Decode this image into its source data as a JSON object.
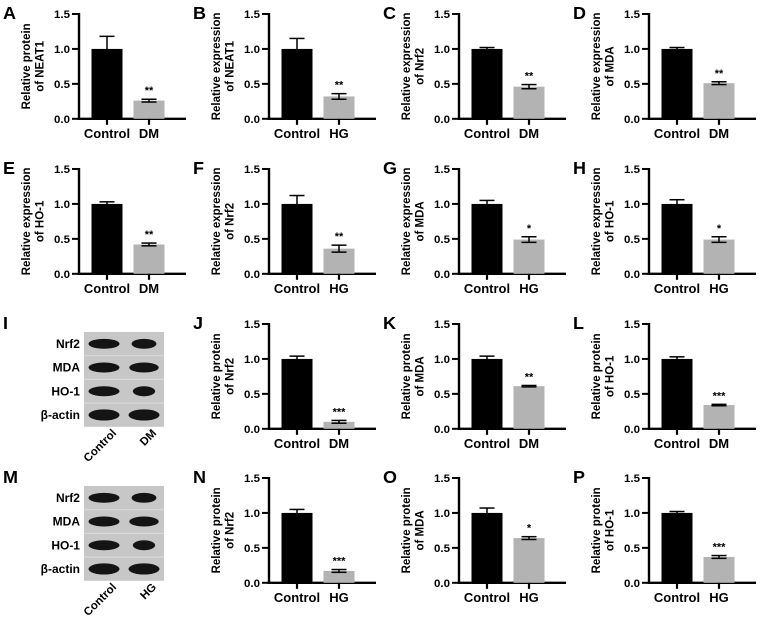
{
  "figure": {
    "description": "Sixteen-panel scientific figure (A–P): bar charts of relative expression/protein levels with western blots, Control vs DM and Control vs HG",
    "colors": {
      "control_bar": "#000000",
      "treated_bar": "#b3b3b3",
      "axis": "#000000",
      "blot_background": "#c7c7c7",
      "blot_separator": "#d9d9d9",
      "blot_band": "#141414"
    }
  },
  "chart_data": [
    {
      "panel": "A",
      "type": "bar",
      "ylabel": "Relative protein of NEAT1",
      "ylabel_lines": [
        "Relative protein",
        "of NEAT1"
      ],
      "categories": [
        "Control",
        "DM"
      ],
      "values": [
        1.0,
        0.26
      ],
      "errors": [
        0.18,
        0.02
      ],
      "significance": "**",
      "ylim": [
        0,
        1.5
      ],
      "yticks": [
        0,
        0.5,
        1,
        1.5
      ]
    },
    {
      "panel": "B",
      "type": "bar",
      "ylabel": "Relative expression of NEAT1",
      "ylabel_lines": [
        "Relative expression",
        "of NEAT1"
      ],
      "categories": [
        "Control",
        "HG"
      ],
      "values": [
        1.0,
        0.32
      ],
      "errors": [
        0.15,
        0.04
      ],
      "significance": "**",
      "ylim": [
        0,
        1.5
      ],
      "yticks": [
        0,
        0.5,
        1,
        1.5
      ]
    },
    {
      "panel": "C",
      "type": "bar",
      "ylabel": "Relative expression of Nrf2",
      "ylabel_lines": [
        "Relative expression",
        "of Nrf2"
      ],
      "categories": [
        "Control",
        "DM"
      ],
      "values": [
        1.0,
        0.46
      ],
      "errors": [
        0.02,
        0.03
      ],
      "significance": "**",
      "ylim": [
        0,
        1.5
      ],
      "yticks": [
        0,
        0.5,
        1,
        1.5
      ]
    },
    {
      "panel": "D",
      "type": "bar",
      "ylabel": "Relative expression of MDA",
      "ylabel_lines": [
        "Relative expression",
        "of MDA"
      ],
      "categories": [
        "Control",
        "DM"
      ],
      "values": [
        1.0,
        0.51
      ],
      "errors": [
        0.02,
        0.02
      ],
      "significance": "**",
      "ylim": [
        0,
        1.5
      ],
      "yticks": [
        0,
        0.5,
        1,
        1.5
      ]
    },
    {
      "panel": "E",
      "type": "bar",
      "ylabel": "Relative expression of HO-1",
      "ylabel_lines": [
        "Relative expression",
        "of HO-1"
      ],
      "categories": [
        "Control",
        "DM"
      ],
      "values": [
        1.0,
        0.42
      ],
      "errors": [
        0.03,
        0.02
      ],
      "significance": "**",
      "ylim": [
        0,
        1.5
      ],
      "yticks": [
        0,
        0.5,
        1,
        1.5
      ]
    },
    {
      "panel": "F",
      "type": "bar",
      "ylabel": "Relative expression of Nrf2",
      "ylabel_lines": [
        "Relative expression",
        "of Nrf2"
      ],
      "categories": [
        "Control",
        "HG"
      ],
      "values": [
        1.0,
        0.36
      ],
      "errors": [
        0.12,
        0.05
      ],
      "significance": "**",
      "ylim": [
        0,
        1.5
      ],
      "yticks": [
        0,
        0.5,
        1,
        1.5
      ]
    },
    {
      "panel": "G",
      "type": "bar",
      "ylabel": "Relative expression of MDA",
      "ylabel_lines": [
        "Relative expression",
        "of MDA"
      ],
      "categories": [
        "Control",
        "HG"
      ],
      "values": [
        1.0,
        0.49
      ],
      "errors": [
        0.05,
        0.04
      ],
      "significance": "*",
      "ylim": [
        0,
        1.5
      ],
      "yticks": [
        0,
        0.5,
        1,
        1.5
      ]
    },
    {
      "panel": "H",
      "type": "bar",
      "ylabel": "Relative expression of HO-1",
      "ylabel_lines": [
        "Relative expression",
        "of HO-1"
      ],
      "categories": [
        "Control",
        "HG"
      ],
      "values": [
        1.0,
        0.49
      ],
      "errors": [
        0.06,
        0.04
      ],
      "significance": "*",
      "ylim": [
        0,
        1.5
      ],
      "yticks": [
        0,
        0.5,
        1,
        1.5
      ]
    },
    {
      "panel": "I",
      "type": "table",
      "subtype": "western_blot",
      "rows": [
        "Nrf2",
        "MDA",
        "HO-1",
        "β-actin"
      ],
      "columns": [
        "Control",
        "DM"
      ],
      "band_relative_width": [
        [
          1,
          0.8
        ],
        [
          1,
          0.95
        ],
        [
          1,
          0.72
        ],
        [
          1,
          1
        ]
      ]
    },
    {
      "panel": "J",
      "type": "bar",
      "ylabel": "Relative protein of Nrf2",
      "ylabel_lines": [
        "Relative protein",
        "of Nrf2"
      ],
      "categories": [
        "Control",
        "DM"
      ],
      "values": [
        1.0,
        0.1
      ],
      "errors": [
        0.04,
        0.02
      ],
      "significance": "***",
      "ylim": [
        0,
        1.5
      ],
      "yticks": [
        0,
        0.5,
        1,
        1.5
      ]
    },
    {
      "panel": "K",
      "type": "bar",
      "ylabel": "Relative protein of MDA",
      "ylabel_lines": [
        "Relative protein",
        "of MDA"
      ],
      "categories": [
        "Control",
        "DM"
      ],
      "values": [
        1.0,
        0.61
      ],
      "errors": [
        0.04,
        0.01
      ],
      "significance": "**",
      "ylim": [
        0,
        1.5
      ],
      "yticks": [
        0,
        0.5,
        1,
        1.5
      ]
    },
    {
      "panel": "L",
      "type": "bar",
      "ylabel": "Relative protein of HO-1",
      "ylabel_lines": [
        "Relative protein",
        "of HO-1"
      ],
      "categories": [
        "Control",
        "DM"
      ],
      "values": [
        1.0,
        0.34
      ],
      "errors": [
        0.03,
        0.01
      ],
      "significance": "***",
      "ylim": [
        0,
        1.5
      ],
      "yticks": [
        0,
        0.5,
        1,
        1.5
      ]
    },
    {
      "panel": "M",
      "type": "table",
      "subtype": "western_blot",
      "rows": [
        "Nrf2",
        "MDA",
        "HO-1",
        "β-actin"
      ],
      "columns": [
        "Control",
        "HG"
      ],
      "band_relative_width": [
        [
          1,
          0.8
        ],
        [
          1,
          0.95
        ],
        [
          1,
          0.72
        ],
        [
          1,
          1
        ]
      ]
    },
    {
      "panel": "N",
      "type": "bar",
      "ylabel": "Relative protein of Nrf2",
      "ylabel_lines": [
        "Relative protein",
        "of Nrf2"
      ],
      "categories": [
        "Control",
        "HG"
      ],
      "values": [
        1.0,
        0.17
      ],
      "errors": [
        0.05,
        0.02
      ],
      "significance": "***",
      "ylim": [
        0,
        1.5
      ],
      "yticks": [
        0,
        0.5,
        1,
        1.5
      ]
    },
    {
      "panel": "O",
      "type": "bar",
      "ylabel": "Relative protein of MDA",
      "ylabel_lines": [
        "Relative protein",
        "of MDA"
      ],
      "categories": [
        "Control",
        "HG"
      ],
      "values": [
        1.0,
        0.64
      ],
      "errors": [
        0.07,
        0.02
      ],
      "significance": "*",
      "ylim": [
        0,
        1.5
      ],
      "yticks": [
        0,
        0.5,
        1,
        1.5
      ]
    },
    {
      "panel": "P",
      "type": "bar",
      "ylabel": "Relative protein of HO-1",
      "ylabel_lines": [
        "Relative protein",
        "of HO-1"
      ],
      "categories": [
        "Control",
        "HG"
      ],
      "values": [
        1.0,
        0.37
      ],
      "errors": [
        0.02,
        0.02
      ],
      "significance": "***",
      "ylim": [
        0,
        1.5
      ],
      "yticks": [
        0,
        0.5,
        1,
        1.5
      ]
    }
  ]
}
